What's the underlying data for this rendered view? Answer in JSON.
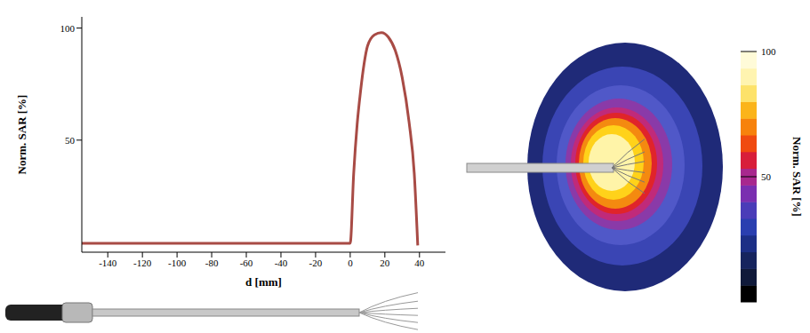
{
  "chart_data": {
    "type": "line",
    "x_label": "d [mm]",
    "y_label": "Norm. SAR [%]",
    "x": [
      -155,
      -120,
      -80,
      -40,
      0,
      2,
      4,
      6,
      8,
      10,
      14,
      18,
      22,
      26,
      30,
      34,
      37,
      39
    ],
    "values": [
      4,
      4,
      4,
      4,
      4,
      35,
      57,
      72,
      84,
      92,
      97,
      98,
      96,
      90,
      78,
      58,
      35,
      3
    ],
    "color": "#a84b45",
    "xlim": [
      -155,
      55
    ],
    "xticks": [
      -140,
      -120,
      -100,
      -80,
      -60,
      -40,
      -20,
      0,
      20,
      40
    ],
    "ylim": [
      0,
      105
    ],
    "yticks": [
      50,
      100
    ],
    "grid": false,
    "colorbar": {
      "label": "Norm. SAR [%]",
      "range": [
        0,
        100
      ],
      "ticks": [
        50,
        100
      ],
      "colors": [
        "#000000",
        "#101a3a",
        "#16245e",
        "#1c2f86",
        "#2a3fb0",
        "#4a3cb8",
        "#7a2fb0",
        "#a8288e",
        "#d81e3a",
        "#f04a10",
        "#f7820c",
        "#fbb41a",
        "#fde26a",
        "#fff4b0",
        "#fffbd8"
      ]
    }
  }
}
